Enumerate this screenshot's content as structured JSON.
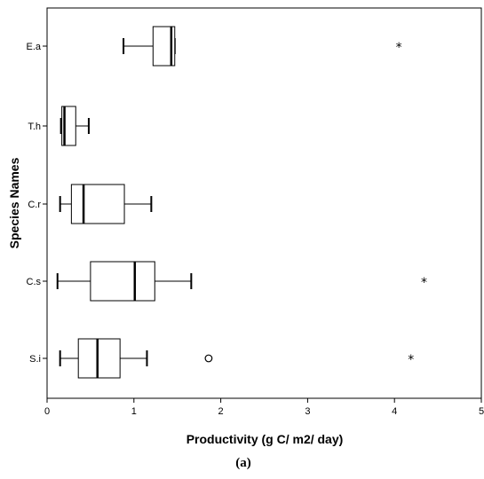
{
  "chart_data": {
    "type": "boxplot",
    "orientation": "horizontal",
    "xlabel": "Productivity (g C/ m2/ day)",
    "ylabel": "Species Names",
    "caption": "(a)",
    "xlim": [
      0,
      5
    ],
    "xticks": [
      "0",
      "1",
      "2",
      "3",
      "4",
      "5"
    ],
    "grid": false,
    "categories": [
      "E.a",
      "T.h",
      "C.r",
      "C.s",
      "S.i"
    ],
    "boxes": [
      {
        "name": "E.a",
        "min": 0.88,
        "q1": 1.22,
        "median": 1.43,
        "q3": 1.47,
        "max": 1.47,
        "outliers": [],
        "extremes": [
          4.05
        ]
      },
      {
        "name": "T.h",
        "min": 0.16,
        "q1": 0.17,
        "median": 0.2,
        "q3": 0.33,
        "max": 0.48,
        "outliers": [],
        "extremes": []
      },
      {
        "name": "C.r",
        "min": 0.15,
        "q1": 0.28,
        "median": 0.42,
        "q3": 0.89,
        "max": 1.2,
        "outliers": [],
        "extremes": []
      },
      {
        "name": "C.s",
        "min": 0.12,
        "q1": 0.5,
        "median": 1.01,
        "q3": 1.24,
        "max": 1.66,
        "outliers": [],
        "extremes": [
          4.34
        ]
      },
      {
        "name": "S.i",
        "min": 0.15,
        "q1": 0.36,
        "median": 0.58,
        "q3": 0.84,
        "max": 1.15,
        "outliers": [
          1.86
        ],
        "extremes": [
          4.19
        ]
      }
    ]
  }
}
